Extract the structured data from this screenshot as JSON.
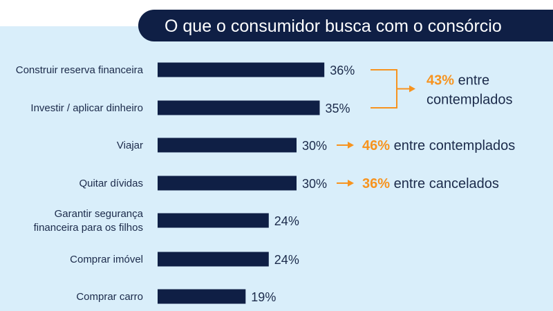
{
  "colors": {
    "panel_bg": "#d9eefa",
    "title_bg": "#0f1f45",
    "bar": "#0f1f45",
    "accent": "#f7931e",
    "text": "#1b2a4a"
  },
  "chart_data": {
    "type": "bar",
    "orientation": "horizontal",
    "title": "O que o consumidor busca com o consórcio",
    "categories": [
      "Construir reserva financeira",
      "Investir / aplicar dinheiro",
      "Viajar",
      "Quitar dívidas",
      "Garantir segurança financeira para os filhos",
      "Comprar imóvel",
      "Comprar carro"
    ],
    "category_lines": [
      [
        "Construir reserva financeira"
      ],
      [
        "Investir / aplicar dinheiro"
      ],
      [
        "Viajar"
      ],
      [
        "Quitar dívidas"
      ],
      [
        "Garantir segurança",
        "financeira para os filhos"
      ],
      [
        "Comprar imóvel"
      ],
      [
        "Comprar carro"
      ]
    ],
    "values": [
      36,
      35,
      30,
      30,
      24,
      24,
      19
    ],
    "value_labels": [
      "36%",
      "35%",
      "30%",
      "30%",
      "24%",
      "24%",
      "19%"
    ],
    "xlim": [
      0,
      100
    ],
    "grid": false,
    "annotations": [
      {
        "rows": [
          0,
          1
        ],
        "bracket": true,
        "pct": "43%",
        "lines": [
          " entre",
          "contemplados"
        ]
      },
      {
        "rows": [
          2
        ],
        "bracket": false,
        "pct": "46%",
        "lines": [
          " entre contemplados"
        ]
      },
      {
        "rows": [
          3
        ],
        "bracket": false,
        "pct": "36%",
        "lines": [
          " entre cancelados"
        ]
      }
    ]
  }
}
